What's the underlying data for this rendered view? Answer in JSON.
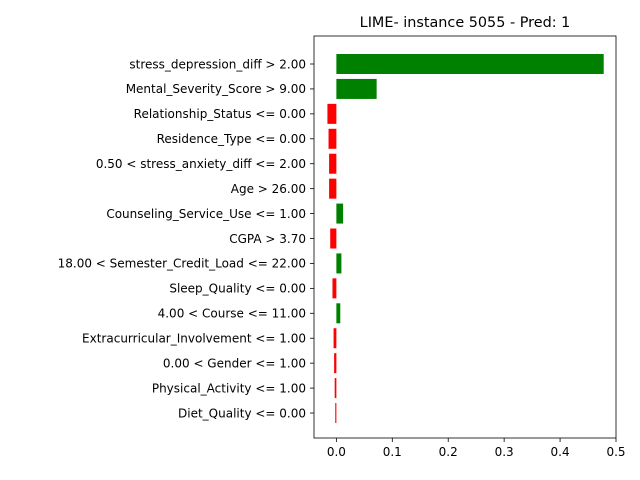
{
  "chart_data": {
    "type": "bar",
    "orientation": "horizontal",
    "title": "LIME- instance 5055 - Pred: 1",
    "xlabel": "",
    "ylabel": "",
    "xlim": [
      -0.04,
      0.5
    ],
    "xticks": [
      0.0,
      0.1,
      0.2,
      0.3,
      0.4,
      0.5
    ],
    "xtick_labels": [
      "0.0",
      "0.1",
      "0.2",
      "0.3",
      "0.4",
      "0.5"
    ],
    "grid": false,
    "colors": {
      "positive": "#008000",
      "negative": "#ff0000"
    },
    "categories": [
      "stress_depression_diff > 2.00",
      "Mental_Severity_Score > 9.00",
      "Relationship_Status <= 0.00",
      "Residence_Type <= 0.00",
      "0.50 < stress_anxiety_diff <= 2.00",
      "Age > 26.00",
      "Counseling_Service_Use <= 1.00",
      "CGPA > 3.70",
      "18.00 < Semester_Credit_Load <= 22.00",
      "Sleep_Quality <= 0.00",
      "4.00 < Course <= 11.00",
      "Extracurricular_Involvement <= 1.00",
      "0.00 < Gender <= 1.00",
      "Physical_Activity <= 1.00",
      "Diet_Quality <= 0.00"
    ],
    "values": [
      0.478,
      0.072,
      -0.016,
      -0.014,
      -0.013,
      -0.013,
      0.012,
      -0.011,
      0.009,
      -0.007,
      0.007,
      -0.005,
      -0.004,
      -0.003,
      -0.002
    ]
  }
}
